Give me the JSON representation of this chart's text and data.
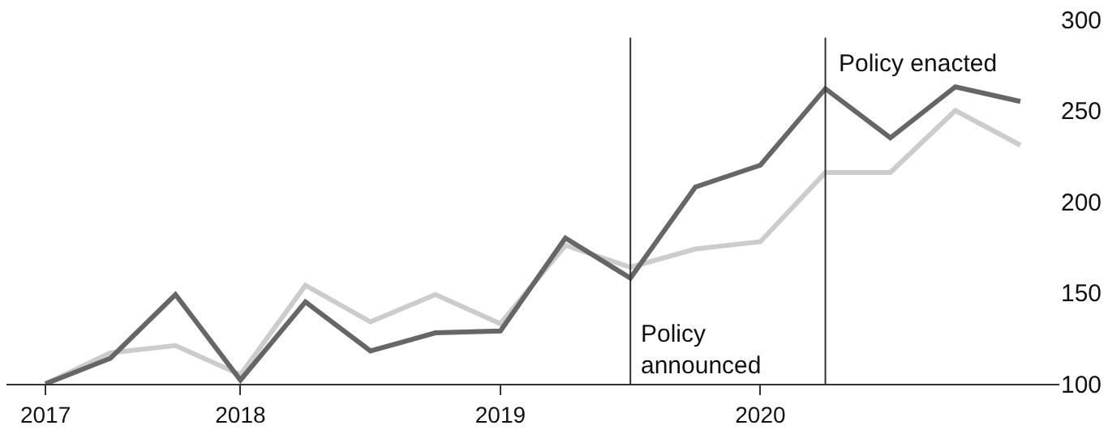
{
  "chart_data": {
    "type": "line",
    "x": [
      2017.25,
      2017.5,
      2017.75,
      2018.0,
      2018.25,
      2018.5,
      2018.75,
      2019.0,
      2019.25,
      2019.5,
      2019.75,
      2020.0,
      2020.25,
      2020.5,
      2020.75,
      2021.0
    ],
    "series": [
      {
        "color": "#cccccc",
        "values": [
          100,
          117,
          121,
          105,
          154,
          134,
          149,
          133,
          176,
          164,
          174,
          178,
          216,
          216,
          250,
          231
        ]
      },
      {
        "color": "#666666",
        "values": [
          100,
          114,
          149,
          102,
          145,
          118,
          128,
          129,
          180,
          158,
          208,
          220,
          262,
          235,
          263,
          255
        ]
      }
    ],
    "xlim": [
      2017.1,
      2021.15
    ],
    "xticks": [
      {
        "value": 2017.25,
        "label": "2017"
      },
      2018,
      2019,
      2020
    ],
    "ylim": [
      100,
      300
    ],
    "yticks": [
      100,
      150,
      200,
      250,
      300
    ],
    "ref_lines": [
      {
        "axis": "x",
        "value": 2019.5,
        "label": "Policy\nannounced",
        "color": "#333333"
      },
      {
        "axis": "x",
        "value": 2020.25,
        "label": "Policy enacted",
        "color": "#333333"
      }
    ],
    "line_style": "solid"
  }
}
